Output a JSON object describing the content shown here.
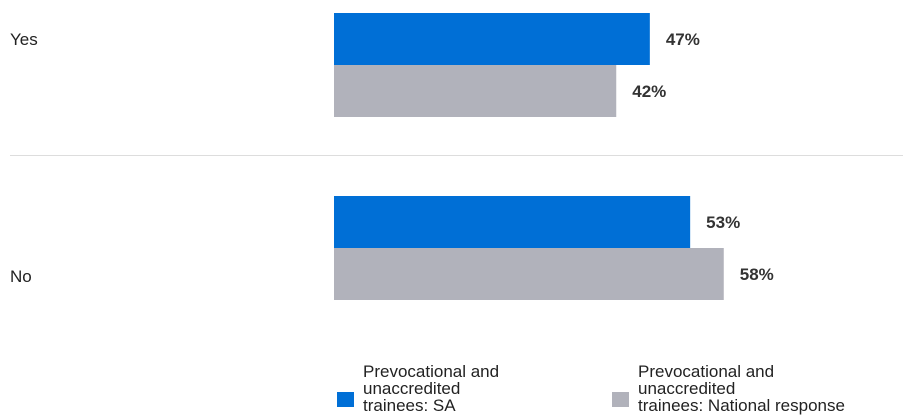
{
  "chart_data": {
    "type": "bar",
    "orientation": "horizontal",
    "categories": [
      "Yes",
      "No"
    ],
    "series": [
      {
        "name": "Prevocational and unaccredited trainees: SA",
        "values": [
          47,
          53
        ],
        "value_labels": [
          "47%",
          "53%"
        ],
        "color": "#006fd6"
      },
      {
        "name": "Prevocational and unaccredited trainees: National response",
        "values": [
          42,
          58
        ],
        "value_labels": [
          "42%",
          "58%"
        ],
        "color": "#b1b2bb"
      }
    ],
    "title": "",
    "xlabel": "",
    "ylabel": "",
    "xlim": [
      0,
      100
    ],
    "grid": false,
    "legend": "bottom"
  },
  "legend": {
    "items": [
      {
        "text": "Prevocational and\nunaccredited\ntrainees: SA",
        "color": "#006fd6"
      },
      {
        "text": "Prevocational and\nunaccredited\ntrainees: National response",
        "color": "#b1b2bb"
      }
    ]
  },
  "colors": {
    "divider": "#dddddd"
  }
}
